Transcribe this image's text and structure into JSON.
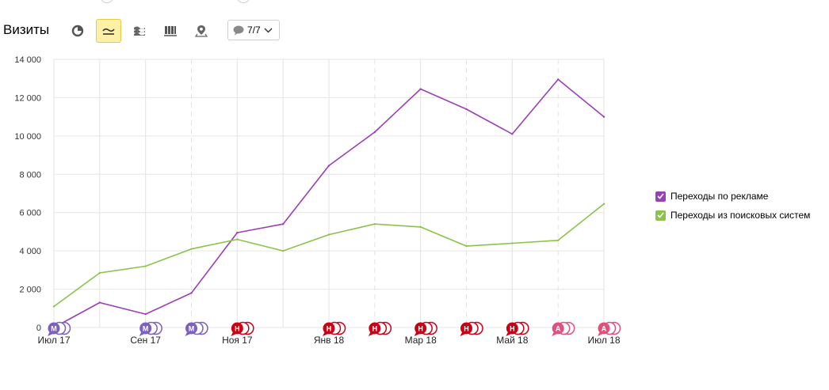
{
  "header": {
    "title": "Визиты",
    "annotations_count": "7/7"
  },
  "toolbar": {
    "buttons": [
      {
        "icon": "pie-chart-icon",
        "active": false
      },
      {
        "icon": "line-chart-icon",
        "active": true
      },
      {
        "icon": "area-chart-icon",
        "active": false
      },
      {
        "icon": "column-chart-icon",
        "active": false
      },
      {
        "icon": "map-icon",
        "active": false
      }
    ]
  },
  "colors": {
    "ads": "#9b3fb5",
    "search": "#8bc34a",
    "marker_m": "#7d5fc0",
    "marker_n": "#cc0014",
    "marker_a": "#e0517e",
    "active_btn": "#fff0a8"
  },
  "chart_data": {
    "type": "line",
    "x": [
      "Июл 17",
      "Авг 17",
      "Сен 17",
      "Окт 17",
      "Ноя 17",
      "Дек 17",
      "Янв 18",
      "Фев 18",
      "Мар 18",
      "Апр 18",
      "Май 18",
      "Июн 18",
      "Июл 18"
    ],
    "x_tick_labels": [
      "Июл 17",
      "Сен 17",
      "Ноя 17",
      "Янв 18",
      "Мар 18",
      "Май 18",
      "Июл 18"
    ],
    "y_ticks": [
      "0",
      "2 000",
      "4 000",
      "6 000",
      "8 000",
      "10 000",
      "12 000",
      "14 000"
    ],
    "ylim": [
      0,
      14000
    ],
    "series": [
      {
        "name": "Переходы по рекламе",
        "color": "#9b3fb5",
        "values": [
          0,
          1300,
          700,
          1800,
          4950,
          5400,
          8450,
          10200,
          12450,
          11400,
          10100,
          12950,
          11000
        ]
      },
      {
        "name": "Переходы из поисковых систем",
        "color": "#8bc34a",
        "values": [
          1100,
          2850,
          3200,
          4100,
          4600,
          4000,
          4850,
          5400,
          5250,
          4250,
          4400,
          4550,
          6450
        ]
      }
    ],
    "legend_position": "right",
    "grid": true,
    "annotation_markers": [
      {
        "x": "Июл 17",
        "letter": "М",
        "type": "m"
      },
      {
        "x": "Сен 17",
        "letter": "М",
        "type": "m"
      },
      {
        "x": "Окт 17",
        "letter": "М",
        "type": "m"
      },
      {
        "x": "Ноя 17",
        "letter": "Н",
        "type": "n"
      },
      {
        "x": "Янв 18",
        "letter": "Н",
        "type": "n"
      },
      {
        "x": "Фев 18",
        "letter": "Н",
        "type": "n"
      },
      {
        "x": "Мар 18",
        "letter": "Н",
        "type": "n"
      },
      {
        "x": "Апр 18",
        "letter": "Н",
        "type": "n"
      },
      {
        "x": "Май 18",
        "letter": "Н",
        "type": "n"
      },
      {
        "x": "Июн 18",
        "letter": "А",
        "type": "a"
      },
      {
        "x": "Июл 18",
        "letter": "А",
        "type": "a"
      }
    ]
  }
}
